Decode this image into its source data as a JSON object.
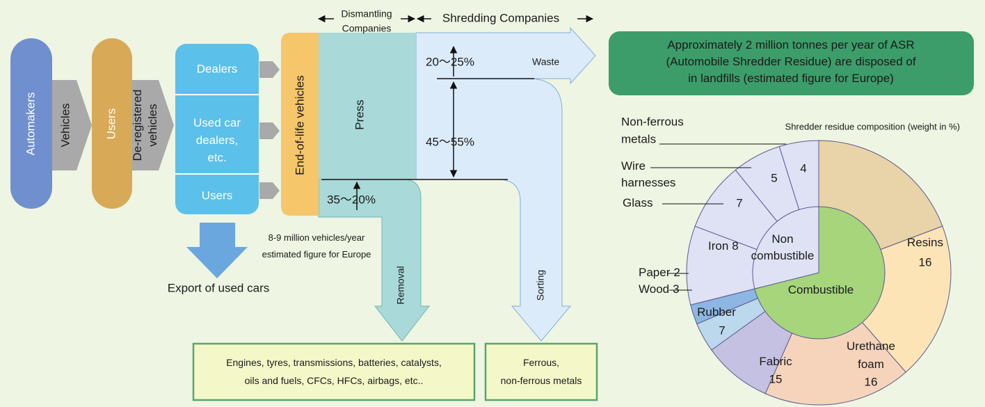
{
  "header": {
    "dismantling": [
      "Dismantling",
      "Companies"
    ],
    "shredding": "Shredding Companies"
  },
  "nodes": {
    "automakers": "Automakers",
    "vehicles": "Vehicles",
    "users": "Users",
    "deregistered": [
      "De-registered",
      "vehicles"
    ],
    "dealers": "Dealers",
    "used_car_dealers": [
      "Used car",
      "dealers,",
      "etc."
    ],
    "users_source": "Users",
    "end_of_life": "End-of-life vehicles",
    "press": "Press",
    "export": "Export of used cars",
    "volume": [
      "8-9 million vehicles/year",
      "estimated figure for Europe"
    ],
    "waste": "Waste",
    "waste_share": "20～25%",
    "sorting_share": "45～55%",
    "removal_share": "35～20%",
    "removal": "Removal",
    "sorting": "Sorting",
    "removal_output": [
      "Engines, tyres, transmissions, batteries, catalysts,",
      "oils and fuels, CFCs, HFCs, airbags, etc.."
    ],
    "sorting_output": [
      "Ferrous,",
      "non-ferrous metals"
    ],
    "asr_note": [
      "Approximately 2 million tonnes per year of ASR",
      "(Automobile Shredder Residue) are disposed of",
      "in landfills (estimated figure for Europe)"
    ]
  },
  "chart_data": {
    "type": "pie",
    "title": "Shredder residue composition (weight in %)",
    "groups": [
      {
        "name": [
          "Combustible"
        ],
        "color": "#a6d57c",
        "slices": [
          {
            "name": [
              "Resins"
            ],
            "value": 16,
            "color": "#e9d3a8"
          },
          {
            "name": [
              "Urethane",
              "foam"
            ],
            "value": 16,
            "color": "#fde4b6"
          },
          {
            "name": [
              "Fabric"
            ],
            "value": 15,
            "color": "#f5d4bb"
          },
          {
            "name": [
              "Rubber"
            ],
            "value": 7,
            "color": "#c5c1e2"
          },
          {
            "name": [
              "Wood"
            ],
            "value": 3,
            "color": "#bcd8ec"
          },
          {
            "name": [
              "Paper"
            ],
            "value": 2,
            "color": "#8db6e2"
          }
        ]
      },
      {
        "name": [
          "Non",
          "combustible"
        ],
        "color": "#dfe2f5",
        "slices": [
          {
            "name": [
              "Iron"
            ],
            "value": 8,
            "color": "#dfe2f5"
          },
          {
            "name": [
              "Glass"
            ],
            "value": 7,
            "color": "#dfe2f5"
          },
          {
            "name": [
              "Wire",
              "harnesses"
            ],
            "value": 5,
            "color": "#dfe2f5"
          },
          {
            "name": [
              "Non-ferrous",
              "metals"
            ],
            "value": 4,
            "color": "#dfe2f5"
          }
        ]
      }
    ]
  }
}
